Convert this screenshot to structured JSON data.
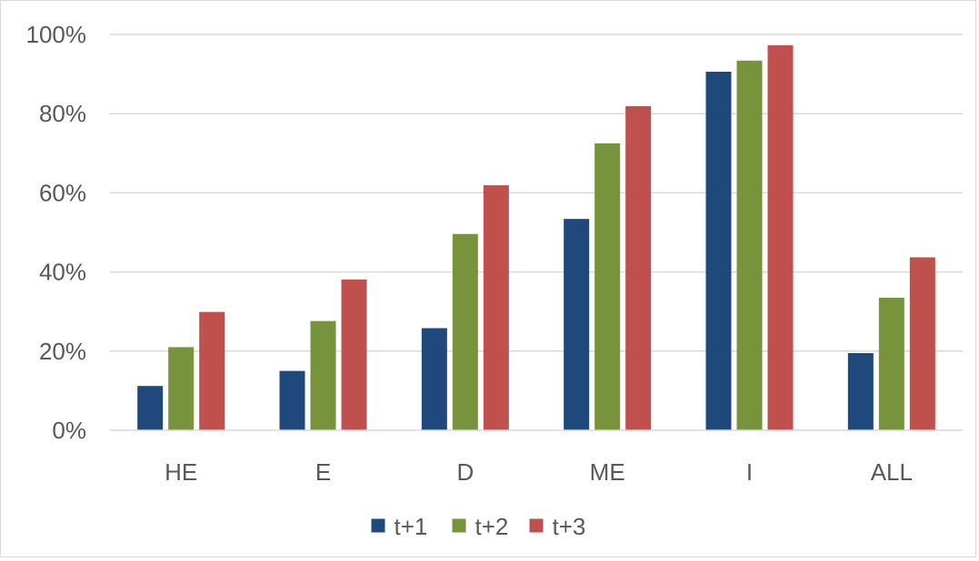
{
  "chart_data": {
    "type": "bar",
    "title": "",
    "xlabel": "",
    "ylabel": "",
    "categories": [
      "HE",
      "E",
      "D",
      "ME",
      "I",
      "ALL"
    ],
    "series": [
      {
        "name": "t+1",
        "color": "#1f497d",
        "values": [
          0.112,
          0.15,
          0.258,
          0.534,
          0.906,
          0.195
        ]
      },
      {
        "name": "t+2",
        "color": "#77933c",
        "values": [
          0.21,
          0.276,
          0.496,
          0.725,
          0.934,
          0.335
        ]
      },
      {
        "name": "t+3",
        "color": "#c0504d",
        "values": [
          0.299,
          0.381,
          0.619,
          0.819,
          0.973,
          0.437
        ]
      }
    ],
    "ylim": [
      0,
      1
    ],
    "yticks": [
      0,
      0.2,
      0.4,
      0.6,
      0.8,
      1.0
    ],
    "ytick_labels": [
      "0%",
      "20%",
      "40%",
      "60%",
      "80%",
      "100%"
    ],
    "grid": true,
    "legend_position": "bottom"
  }
}
